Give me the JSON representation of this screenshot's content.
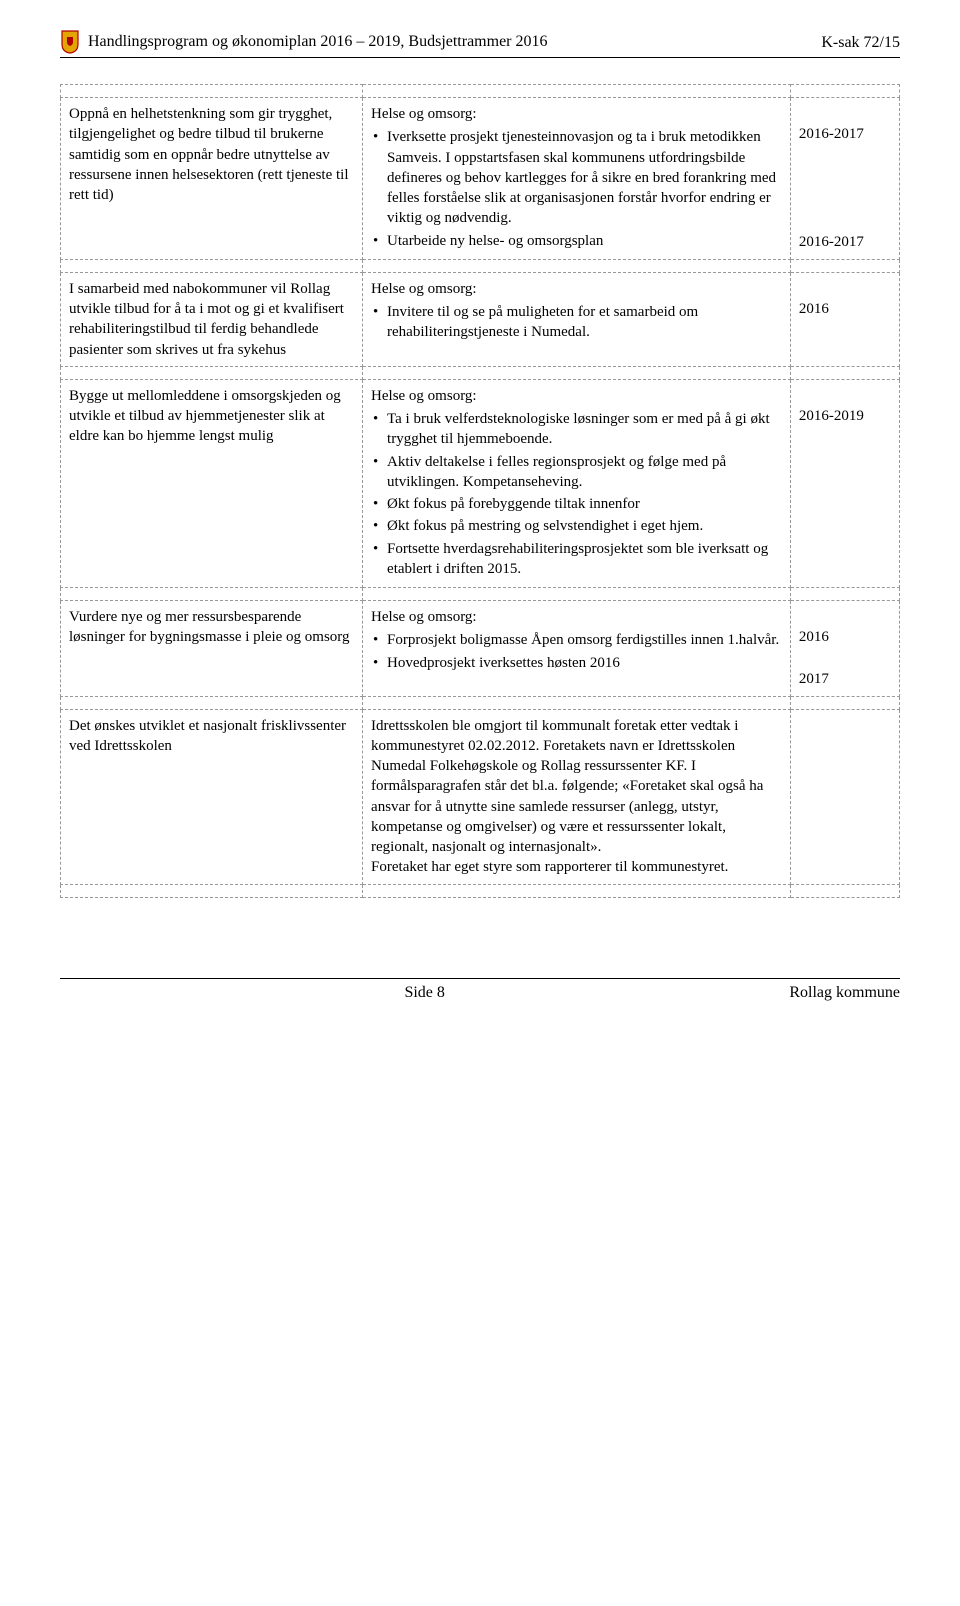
{
  "header": {
    "title": "Handlingsprogram og økonomiplan 2016 – 2019, Budsjettrammer 2016",
    "caseRef": "K-sak 72/15"
  },
  "rows": [
    {
      "left": "Oppnå en helhetstenkning som gir trygghet, tilgjengelighet og bedre tilbud til brukerne samtidig som en oppnår bedre utnyttelse av ressursene innen helsesektoren (rett tjeneste til rett tid)",
      "midLabel": "Helse og omsorg:",
      "midBullets": [
        "Iverksette prosjekt tjenesteinnovasjon og ta i bruk metodikken Samveis. I oppstartsfasen skal kommunens utfordringsbilde defineres og behov kartlegges for å sikre en bred forankring med felles forståelse slik at organisasjonen forstår hvorfor endring er viktig og nødvendig.",
        "Utarbeide ny helse- og omsorgsplan"
      ],
      "years": [
        "2016-2017",
        "2016-2017"
      ],
      "yearSpacing": "88px"
    },
    {
      "left": "I samarbeid med nabokommuner vil Rollag utvikle tilbud for å ta i mot og gi et kvalifisert rehabiliteringstilbud til ferdig behandlede pasienter som skrives ut fra sykehus",
      "midLabel": "Helse og omsorg:",
      "midBullets": [
        "Invitere til og se på muligheten for et samarbeid om rehabiliteringstjeneste i Numedal."
      ],
      "years": [
        "2016"
      ],
      "yearSpacing": "0"
    },
    {
      "left": "Bygge ut mellomleddene i omsorgskjeden og utvikle et tilbud av hjemmetjenester slik at eldre kan bo hjemme lengst mulig",
      "midLabel": "Helse og omsorg:",
      "midBullets": [
        "Ta i bruk velferdsteknologiske løsninger som er med på å gi økt trygghet til hjemmeboende.",
        "Aktiv deltakelse i felles regionsprosjekt og følge med på utviklingen. Kompetanseheving.",
        "Økt fokus på forebyggende tiltak innenfor",
        "Økt fokus på mestring og selvstendighet i eget hjem.",
        "Fortsette hverdagsrehabiliteringsprosjektet som ble iverksatt og etablert i driften 2015."
      ],
      "years": [
        "2016-2019"
      ],
      "yearSpacing": "0"
    },
    {
      "left": "Vurdere nye og mer ressursbesparende løsninger for bygningsmasse i pleie og omsorg",
      "midLabel": "Helse og omsorg:",
      "midBullets": [
        "Forprosjekt boligmasse Åpen omsorg ferdigstilles innen 1.halvår.",
        "Hovedprosjekt iverksettes høsten 2016"
      ],
      "years": [
        "2016",
        "2017"
      ],
      "yearSpacing": "22px"
    },
    {
      "left": "Det ønskes utviklet et nasjonalt frisklivssenter ved Idrettsskolen",
      "midLabel": "",
      "midPlain": "Idrettsskolen ble omgjort til kommunalt foretak etter vedtak i kommunestyret 02.02.2012. Foretakets navn er Idrettsskolen Numedal Folkehøgskole og Rollag ressurssenter KF. I formålsparagrafen står det bl.a. følgende; «Foretaket skal også ha ansvar for å utnytte sine samlede ressurser (anlegg, utstyr, kompetanse og omgivelser) og være et ressurssenter lokalt, regionalt, nasjonalt og internasjonalt».\nForetaket har eget styre som rapporterer til kommunestyret.",
      "years": [],
      "yearSpacing": "0"
    }
  ],
  "footer": {
    "page": "Side 8",
    "org": "Rollag kommune"
  },
  "colors": {
    "shieldFill": "#e4a500",
    "shieldStroke": "#b00000",
    "shieldInner": "#b00000"
  }
}
